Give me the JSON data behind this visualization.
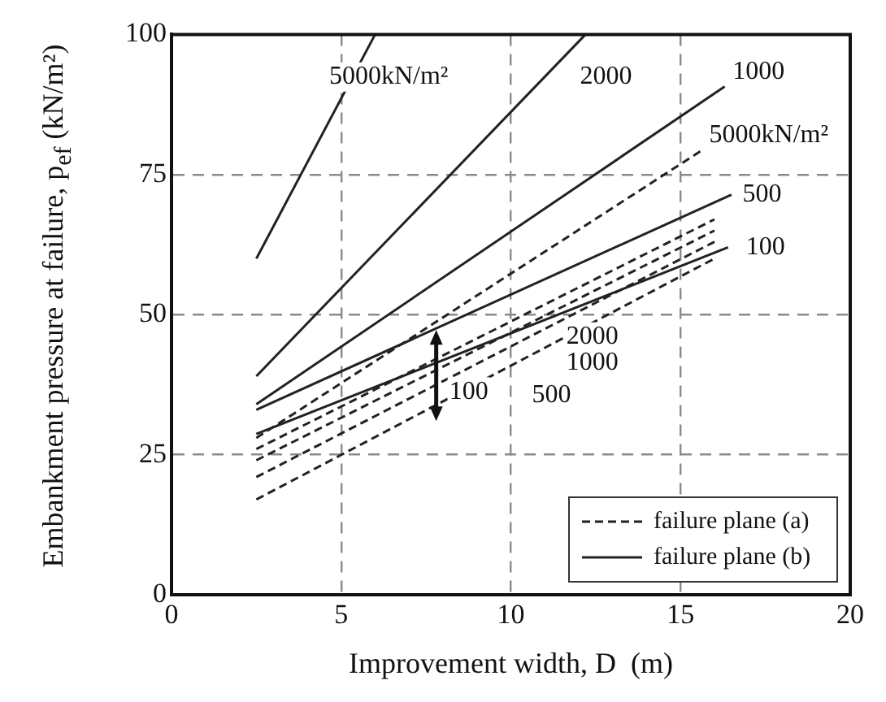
{
  "chart_data": {
    "type": "line",
    "xlabel": "Improvement width, D  (m)",
    "ylabel": "Embankment pressure at failure, p$_{ef}$ (kN/m²)",
    "xlim": [
      0,
      20
    ],
    "xticks": [
      0,
      5,
      10,
      15,
      20
    ],
    "ylim": [
      0,
      100
    ],
    "yticks": [
      0,
      25,
      50,
      75,
      100
    ],
    "grid": true,
    "legend": "bottom right",
    "marker": "none",
    "series": [
      {
        "name": "failure plane (a)",
        "color": "#222222",
        "line_style": "dashed",
        "x": [
          2.5,
          15.7
        ],
        "values": [
          28,
          79.6
        ]
      },
      {
        "color": "#222222",
        "line_style": "dashed",
        "x": [
          2.5,
          16
        ],
        "values": [
          26,
          67
        ]
      },
      {
        "color": "#222222",
        "line_style": "dashed",
        "x": [
          2.5,
          16
        ],
        "values": [
          24,
          65
        ]
      },
      {
        "color": "#222222",
        "line_style": "dashed",
        "x": [
          2.5,
          16
        ],
        "values": [
          21,
          63
        ]
      },
      {
        "color": "#222222",
        "line_style": "dashed",
        "x": [
          2.5,
          16
        ],
        "values": [
          17,
          60
        ]
      },
      {
        "name": "failure plane (b)",
        "color": "#222222",
        "line_style": "solid",
        "x": [
          2.5,
          6
        ],
        "values": [
          60,
          100
        ]
      },
      {
        "color": "#222222",
        "line_style": "solid",
        "x": [
          2.5,
          12.2
        ],
        "values": [
          39,
          100
        ]
      },
      {
        "color": "#222222",
        "line_style": "solid",
        "x": [
          2.5,
          16.3
        ],
        "values": [
          34,
          90.7
        ]
      },
      {
        "color": "#222222",
        "line_style": "solid",
        "x": [
          2.5,
          16.5
        ],
        "values": [
          33,
          71.4
        ]
      },
      {
        "color": "#222222",
        "line_style": "solid",
        "x": [
          2.5,
          16.4
        ],
        "values": [
          28.7,
          62
        ]
      }
    ],
    "annotations": [
      "5000kN/m²",
      "2000",
      "1000",
      "5000kN/m²",
      "500",
      "100",
      "2000",
      "1000",
      "500",
      {
        "text": "100",
        "x": 7.8,
        "y": 33.9
      }
    ]
  }
}
